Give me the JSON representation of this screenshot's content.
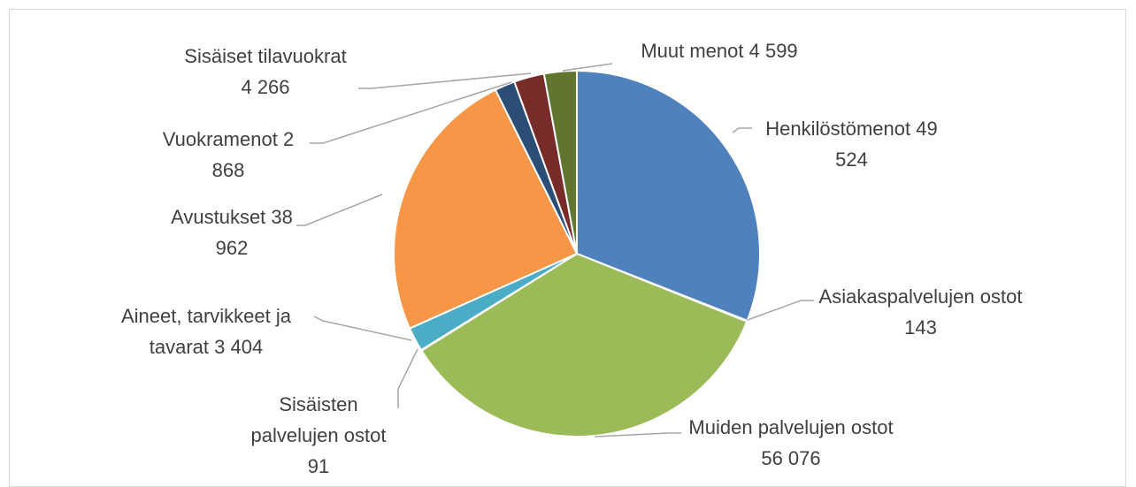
{
  "chart_data": {
    "type": "pie",
    "categories": [
      "Henkilöstömenot",
      "Asiakaspalvelujen ostot",
      "Muiden palvelujen ostot",
      "Sisäisten palvelujen ostot",
      "Aineet, tarvikkeet ja tavarat",
      "Avustukset",
      "Vuokramenot",
      "Sisäiset tilavuokrat",
      "Muut menot"
    ],
    "values": [
      49524,
      143,
      56076,
      91,
      3404,
      38962,
      2868,
      4266,
      4599
    ],
    "value_labels": [
      "49 524",
      "143",
      "56 076",
      "91",
      "3 404",
      "38 962",
      "2 868",
      "4 266",
      "4 599"
    ],
    "colors": [
      "#4f81bd",
      "#c0504d",
      "#9bbb59",
      "#8064a2",
      "#4bacc6",
      "#f79646",
      "#2c4d75",
      "#772c2a",
      "#5f7530"
    ]
  }
}
